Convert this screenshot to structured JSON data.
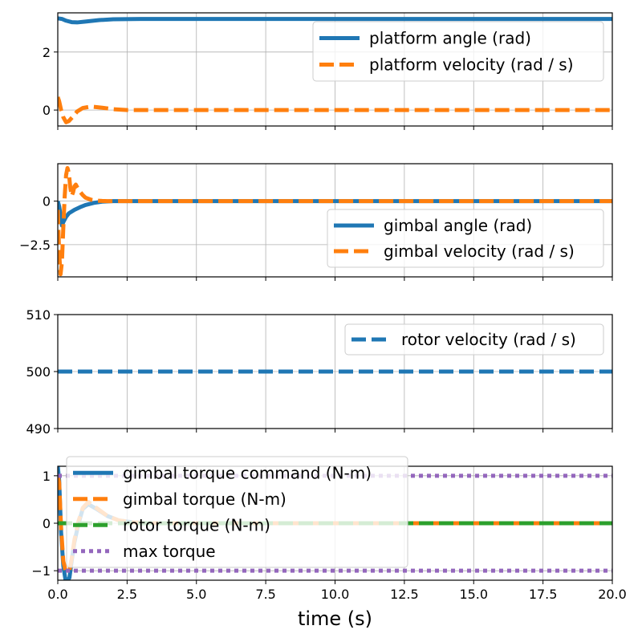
{
  "chart_data": [
    {
      "type": "line",
      "xlim": [
        0,
        20
      ],
      "ylim": [
        -0.55,
        3.35
      ],
      "yticks": [
        0,
        2
      ],
      "grid": true,
      "legend": {
        "placement": "upper-right"
      },
      "series": [
        {
          "name": "platform angle (rad)",
          "color": "#1f77b4",
          "style": "solid",
          "x": [
            0,
            0.15,
            0.3,
            0.5,
            0.7,
            1.0,
            1.5,
            2.0,
            3.0,
            5.0,
            20.0
          ],
          "y": [
            3.16,
            3.14,
            3.08,
            3.03,
            3.02,
            3.05,
            3.1,
            3.13,
            3.14,
            3.14,
            3.14
          ]
        },
        {
          "name": "platform velocity (rad / s)",
          "color": "#ff7f0e",
          "style": "dashed",
          "x": [
            0,
            0.05,
            0.12,
            0.2,
            0.3,
            0.4,
            0.55,
            0.7,
            0.9,
            1.2,
            1.6,
            2.0,
            2.5,
            3.0,
            20.0
          ],
          "y": [
            0.45,
            0.3,
            0.0,
            -0.25,
            -0.42,
            -0.38,
            -0.22,
            -0.05,
            0.07,
            0.12,
            0.08,
            0.03,
            0.0,
            0.0,
            0.0
          ]
        }
      ]
    },
    {
      "type": "line",
      "xlim": [
        0,
        20
      ],
      "ylim": [
        -4.35,
        2.15
      ],
      "yticks": [
        0.0,
        -2.5
      ],
      "grid": true,
      "legend": {
        "placement": "lower-right"
      },
      "series": [
        {
          "name": "gimbal angle (rad)",
          "color": "#1f77b4",
          "style": "solid",
          "x": [
            0,
            0.05,
            0.1,
            0.15,
            0.2,
            0.3,
            0.4,
            0.6,
            0.8,
            1.0,
            1.3,
            1.6,
            2.0,
            20.0
          ],
          "y": [
            0.0,
            -0.3,
            -0.8,
            -1.4,
            -1.2,
            -0.9,
            -0.7,
            -0.5,
            -0.35,
            -0.22,
            -0.1,
            -0.03,
            0.0,
            0.0
          ]
        },
        {
          "name": "gimbal velocity (rad / s)",
          "color": "#ff7f0e",
          "style": "dashed",
          "x": [
            0,
            0.05,
            0.1,
            0.15,
            0.2,
            0.25,
            0.3,
            0.35,
            0.4,
            0.45,
            0.5,
            0.55,
            0.6,
            0.65,
            0.7,
            0.8,
            0.9,
            1.0,
            1.2,
            1.4,
            1.6,
            1.8,
            2.0,
            20.0
          ],
          "y": [
            -0.5,
            -3.0,
            -4.2,
            -3.5,
            -1.5,
            0.3,
            1.5,
            1.9,
            1.6,
            0.8,
            0.3,
            0.5,
            0.85,
            0.95,
            0.8,
            0.55,
            0.35,
            0.2,
            0.08,
            0.03,
            0.01,
            0.0,
            0.0,
            0.0
          ]
        }
      ]
    },
    {
      "type": "line",
      "xlim": [
        0,
        20
      ],
      "ylim": [
        490,
        510
      ],
      "yticks": [
        490,
        500,
        510
      ],
      "grid": true,
      "legend": {
        "placement": "upper-right"
      },
      "series": [
        {
          "name": "rotor velocity (rad / s)",
          "color": "#1f77b4",
          "style": "dashed",
          "x": [
            0,
            20
          ],
          "y": [
            500,
            500
          ]
        }
      ]
    },
    {
      "type": "line",
      "xlim": [
        0,
        20
      ],
      "ylim": [
        -1.2,
        1.2
      ],
      "yticks": [
        -1,
        0,
        1
      ],
      "xticks": [
        0.0,
        2.5,
        5.0,
        7.5,
        10.0,
        12.5,
        15.0,
        17.5,
        20.0
      ],
      "xlabel": "time (s)",
      "grid": true,
      "legend": {
        "placement": "upper-left"
      },
      "series": [
        {
          "name": "gimbal torque command (N-m)",
          "color": "#1f77b4",
          "style": "solid",
          "x": [
            0,
            0.05,
            0.12,
            0.2,
            0.28,
            0.35,
            0.42,
            0.5,
            0.6,
            0.75,
            0.9,
            1.1,
            1.4,
            1.8,
            2.2,
            2.7,
            3.2,
            20.0
          ],
          "y": [
            1.2,
            0.9,
            -0.2,
            -0.9,
            -1.2,
            -1.2,
            -1.15,
            -0.8,
            -0.4,
            0.0,
            0.3,
            0.4,
            0.3,
            0.15,
            0.06,
            0.02,
            0.0,
            0.0
          ]
        },
        {
          "name": "gimbal torque (N-m)",
          "color": "#ff7f0e",
          "style": "dashed",
          "x": [
            0,
            0.05,
            0.12,
            0.2,
            0.28,
            0.35,
            0.42,
            0.5,
            0.6,
            0.75,
            0.9,
            1.1,
            1.4,
            1.8,
            2.2,
            2.7,
            3.2,
            20.0
          ],
          "y": [
            1.0,
            0.85,
            -0.1,
            -0.8,
            -1.0,
            -1.0,
            -1.0,
            -0.75,
            -0.35,
            0.05,
            0.32,
            0.45,
            0.32,
            0.15,
            0.06,
            0.02,
            0.0,
            0.0
          ]
        },
        {
          "name": "rotor torque (N-m)",
          "color": "#2ca02c",
          "style": "dashed",
          "x": [
            0,
            20
          ],
          "y": [
            0,
            0
          ]
        },
        {
          "name": "max torque",
          "color": "#9467bd",
          "style": "dotted",
          "x": [
            0,
            20
          ],
          "y": [
            1,
            1
          ]
        },
        {
          "name": "",
          "color": "#9467bd",
          "style": "dotted",
          "x": [
            0,
            20
          ],
          "y": [
            -1,
            -1
          ]
        }
      ]
    }
  ]
}
